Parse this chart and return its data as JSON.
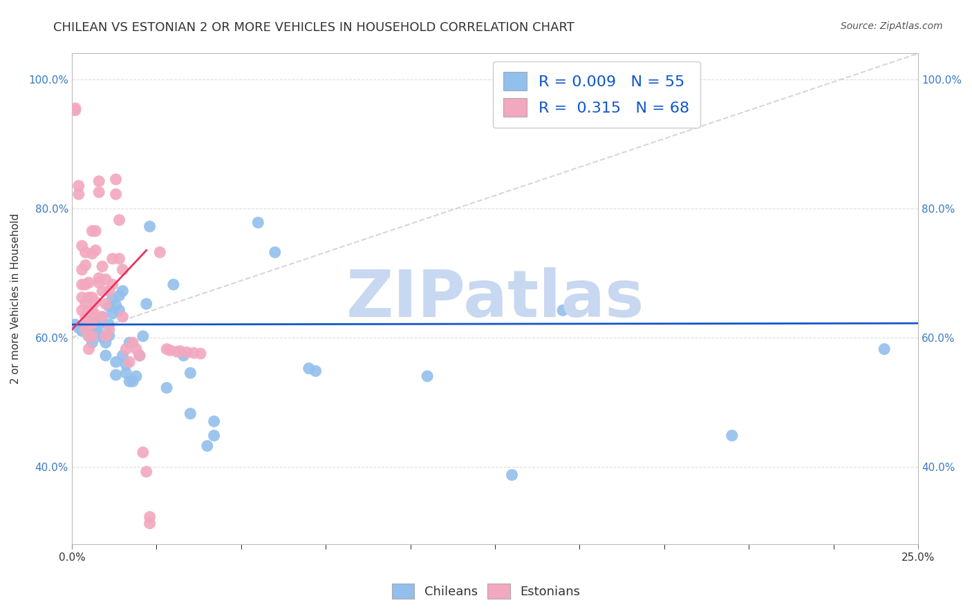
{
  "title": "CHILEAN VS ESTONIAN 2 OR MORE VEHICLES IN HOUSEHOLD CORRELATION CHART",
  "source": "Source: ZipAtlas.com",
  "ylabel": "2 or more Vehicles in Household",
  "x_min": 0.0,
  "x_max": 0.25,
  "y_min": 0.28,
  "y_max": 1.04,
  "y_ticks": [
    0.4,
    0.6,
    0.8,
    1.0
  ],
  "y_tick_labels": [
    "40.0%",
    "60.0%",
    "80.0%",
    "100.0%"
  ],
  "x_tick_labels": [
    "0.0%",
    "25.0%"
  ],
  "chilean_color": "#92bfec",
  "estonian_color": "#f2a8be",
  "trendline_chilean_color": "#1155cc",
  "trendline_estonian_color": "#e8325a",
  "diagonal_color": "#cccccc",
  "R_chilean": 0.009,
  "N_chilean": 55,
  "R_estonian": 0.315,
  "N_estonian": 68,
  "legend_text_color": "#1155cc",
  "watermark": "ZIPatlas",
  "watermark_color": "#c8d8f0",
  "chilean_points": [
    [
      0.001,
      0.62
    ],
    [
      0.002,
      0.615
    ],
    [
      0.003,
      0.61
    ],
    [
      0.004,
      0.618
    ],
    [
      0.005,
      0.625
    ],
    [
      0.005,
      0.602
    ],
    [
      0.006,
      0.618
    ],
    [
      0.006,
      0.592
    ],
    [
      0.007,
      0.624
    ],
    [
      0.007,
      0.61
    ],
    [
      0.008,
      0.62
    ],
    [
      0.008,
      0.606
    ],
    [
      0.009,
      0.632
    ],
    [
      0.009,
      0.6
    ],
    [
      0.01,
      0.592
    ],
    [
      0.01,
      0.572
    ],
    [
      0.011,
      0.648
    ],
    [
      0.011,
      0.62
    ],
    [
      0.011,
      0.603
    ],
    [
      0.012,
      0.66
    ],
    [
      0.012,
      0.637
    ],
    [
      0.013,
      0.65
    ],
    [
      0.013,
      0.562
    ],
    [
      0.013,
      0.542
    ],
    [
      0.014,
      0.665
    ],
    [
      0.014,
      0.642
    ],
    [
      0.015,
      0.672
    ],
    [
      0.015,
      0.572
    ],
    [
      0.016,
      0.558
    ],
    [
      0.016,
      0.545
    ],
    [
      0.017,
      0.532
    ],
    [
      0.017,
      0.592
    ],
    [
      0.018,
      0.532
    ],
    [
      0.019,
      0.54
    ],
    [
      0.02,
      0.572
    ],
    [
      0.021,
      0.602
    ],
    [
      0.022,
      0.652
    ],
    [
      0.023,
      0.772
    ],
    [
      0.028,
      0.522
    ],
    [
      0.03,
      0.682
    ],
    [
      0.033,
      0.572
    ],
    [
      0.035,
      0.482
    ],
    [
      0.035,
      0.545
    ],
    [
      0.04,
      0.432
    ],
    [
      0.042,
      0.47
    ],
    [
      0.042,
      0.448
    ],
    [
      0.055,
      0.778
    ],
    [
      0.06,
      0.732
    ],
    [
      0.07,
      0.552
    ],
    [
      0.072,
      0.548
    ],
    [
      0.105,
      0.54
    ],
    [
      0.13,
      0.387
    ],
    [
      0.145,
      0.642
    ],
    [
      0.195,
      0.448
    ],
    [
      0.24,
      0.582
    ]
  ],
  "estonian_points": [
    [
      0.001,
      0.952
    ],
    [
      0.001,
      0.955
    ],
    [
      0.002,
      0.822
    ],
    [
      0.002,
      0.835
    ],
    [
      0.003,
      0.742
    ],
    [
      0.003,
      0.705
    ],
    [
      0.003,
      0.682
    ],
    [
      0.003,
      0.662
    ],
    [
      0.003,
      0.642
    ],
    [
      0.004,
      0.732
    ],
    [
      0.004,
      0.712
    ],
    [
      0.004,
      0.682
    ],
    [
      0.004,
      0.652
    ],
    [
      0.004,
      0.632
    ],
    [
      0.004,
      0.612
    ],
    [
      0.005,
      0.685
    ],
    [
      0.005,
      0.662
    ],
    [
      0.005,
      0.642
    ],
    [
      0.005,
      0.622
    ],
    [
      0.005,
      0.602
    ],
    [
      0.005,
      0.582
    ],
    [
      0.006,
      0.765
    ],
    [
      0.006,
      0.73
    ],
    [
      0.006,
      0.662
    ],
    [
      0.006,
      0.642
    ],
    [
      0.006,
      0.622
    ],
    [
      0.006,
      0.602
    ],
    [
      0.007,
      0.765
    ],
    [
      0.007,
      0.735
    ],
    [
      0.007,
      0.655
    ],
    [
      0.007,
      0.635
    ],
    [
      0.008,
      0.842
    ],
    [
      0.008,
      0.825
    ],
    [
      0.008,
      0.685
    ],
    [
      0.008,
      0.692
    ],
    [
      0.009,
      0.71
    ],
    [
      0.009,
      0.672
    ],
    [
      0.009,
      0.632
    ],
    [
      0.01,
      0.69
    ],
    [
      0.01,
      0.652
    ],
    [
      0.01,
      0.602
    ],
    [
      0.011,
      0.672
    ],
    [
      0.011,
      0.612
    ],
    [
      0.012,
      0.722
    ],
    [
      0.012,
      0.682
    ],
    [
      0.013,
      0.845
    ],
    [
      0.013,
      0.822
    ],
    [
      0.014,
      0.782
    ],
    [
      0.014,
      0.722
    ],
    [
      0.015,
      0.705
    ],
    [
      0.015,
      0.632
    ],
    [
      0.016,
      0.582
    ],
    [
      0.017,
      0.562
    ],
    [
      0.018,
      0.592
    ],
    [
      0.019,
      0.582
    ],
    [
      0.02,
      0.572
    ],
    [
      0.021,
      0.422
    ],
    [
      0.022,
      0.392
    ],
    [
      0.023,
      0.322
    ],
    [
      0.023,
      0.312
    ],
    [
      0.026,
      0.732
    ],
    [
      0.028,
      0.582
    ],
    [
      0.029,
      0.58
    ],
    [
      0.031,
      0.578
    ],
    [
      0.032,
      0.579
    ],
    [
      0.034,
      0.577
    ],
    [
      0.036,
      0.576
    ],
    [
      0.038,
      0.575
    ]
  ],
  "background_color": "#ffffff",
  "grid_color": "#dddddd",
  "title_fontsize": 13,
  "axis_label_fontsize": 11,
  "tick_fontsize": 11,
  "legend_fontsize": 16
}
